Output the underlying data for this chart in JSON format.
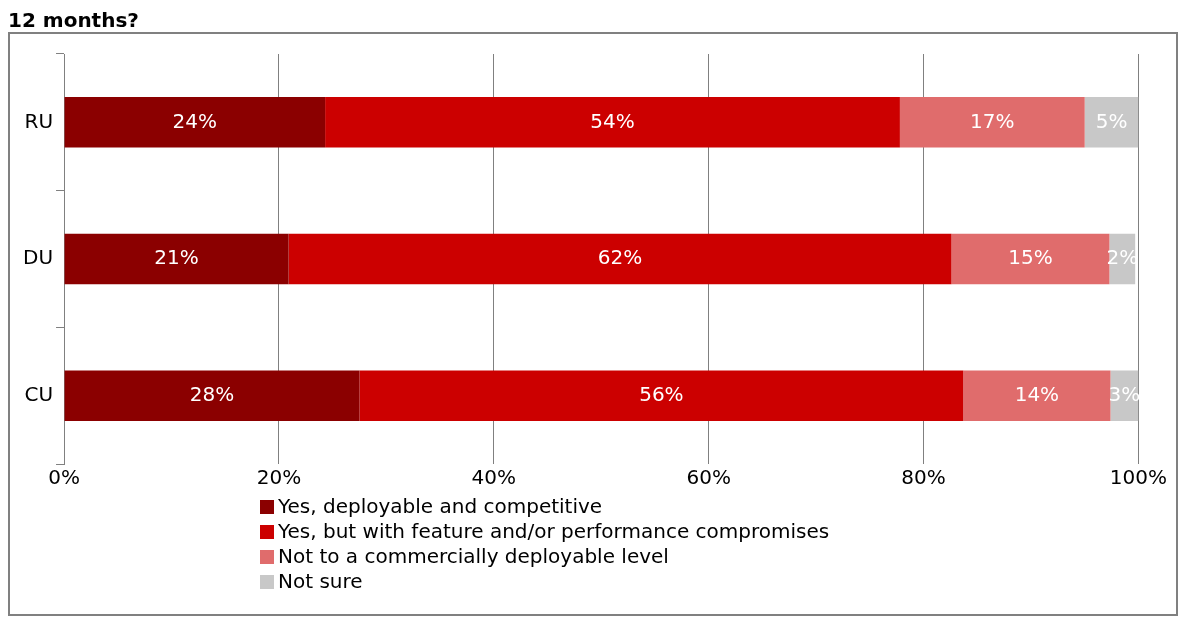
{
  "chart_data": {
    "type": "bar",
    "orientation": "horizontal",
    "stacked": true,
    "title": "12 months?",
    "categories": [
      "RU",
      "DU",
      "CU"
    ],
    "series": [
      {
        "name": "Yes, deployable and competitive",
        "color": "#8b0000",
        "values": [
          24.3,
          20.9,
          27.5
        ],
        "value_labels": [
          "24%",
          "21%",
          "28%"
        ]
      },
      {
        "name": "Yes, but with feature and/or performance compromises",
        "color": "#cc0000",
        "values": [
          53.5,
          61.7,
          56.2
        ],
        "value_labels": [
          "54%",
          "62%",
          "56%"
        ]
      },
      {
        "name": "Not to a commercially deployable level",
        "color": "#e06c6c",
        "values": [
          17.2,
          14.7,
          13.7
        ],
        "value_labels": [
          "17%",
          "15%",
          "14%"
        ]
      },
      {
        "name": "Not sure",
        "color": "#c8c8c8",
        "values": [
          5.0,
          2.4,
          2.6
        ],
        "value_labels": [
          "5%",
          "2%",
          "3%"
        ]
      }
    ],
    "xlim": [
      0,
      100
    ],
    "xticks": [
      {
        "value": 0,
        "label": "0%"
      },
      {
        "value": 20,
        "label": "20%"
      },
      {
        "value": 40,
        "label": "40%"
      },
      {
        "value": 60,
        "label": "60%"
      },
      {
        "value": 80,
        "label": "80%"
      },
      {
        "value": 100,
        "label": "100%"
      }
    ],
    "grid": "x",
    "legend": "bottom"
  }
}
